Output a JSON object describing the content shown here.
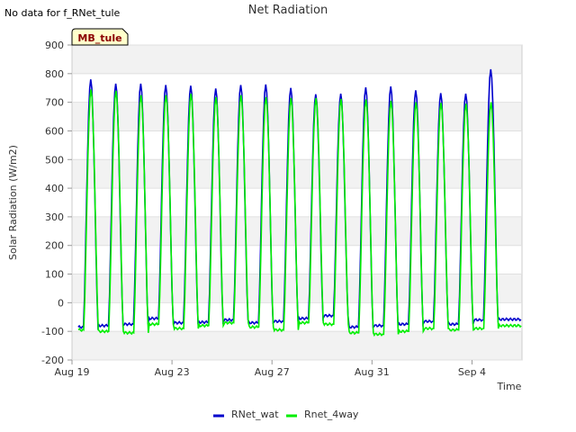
{
  "header_note": "No data for f_RNet_tule",
  "chart_data": {
    "type": "line",
    "title": "Net Radiation",
    "xlabel": "Time",
    "ylabel": "Solar Radiation (W/m2)",
    "site_label": "MB_tule",
    "xlim_days": [
      0,
      18
    ],
    "ylim": [
      -200,
      900
    ],
    "yticks": [
      -200,
      -100,
      0,
      100,
      200,
      300,
      400,
      500,
      600,
      700,
      800,
      900
    ],
    "xticks": [
      {
        "day": 0,
        "label": "Aug 19"
      },
      {
        "day": 4,
        "label": "Aug 23"
      },
      {
        "day": 8,
        "label": "Aug 27"
      },
      {
        "day": 12,
        "label": "Aug 31"
      },
      {
        "day": 16,
        "label": "Sep 4"
      }
    ],
    "grid": true,
    "legend_position": "bottom-center",
    "series": [
      {
        "name": "RNet_wat",
        "color": "#0000cc",
        "daily_peak": [
          780,
          765,
          765,
          760,
          758,
          748,
          760,
          762,
          750,
          728,
          730,
          752,
          755,
          742,
          732,
          730,
          815
        ],
        "night_min": [
          -85,
          -80,
          -75,
          -55,
          -70,
          -68,
          -60,
          -70,
          -65,
          -55,
          -45,
          -85,
          -80,
          -75,
          -65,
          -75,
          -60,
          -58
        ]
      },
      {
        "name": "Rnet_4way",
        "color": "#00ee00",
        "daily_peak": [
          745,
          740,
          725,
          725,
          730,
          718,
          725,
          718,
          715,
          715,
          712,
          710,
          705,
          700,
          698,
          695,
          700
        ],
        "night_min": [
          -95,
          -100,
          -105,
          -75,
          -90,
          -80,
          -70,
          -85,
          -95,
          -70,
          -75,
          -105,
          -110,
          -100,
          -90,
          -95,
          -90,
          -80
        ]
      }
    ]
  },
  "legend": {
    "items": [
      "RNet_wat",
      "Rnet_4way"
    ]
  }
}
